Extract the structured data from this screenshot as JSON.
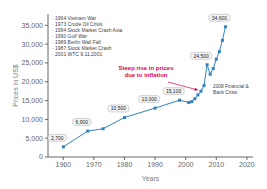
{
  "chart_data": {
    "type": "line",
    "x": [
      1960,
      1968,
      1973,
      1980,
      1990,
      1998,
      2001,
      2002,
      2003,
      2004,
      2005,
      2006,
      2007,
      2008,
      2009,
      2010,
      2011,
      2012,
      2013
    ],
    "values": [
      2700,
      6900,
      7500,
      10500,
      13000,
      15100,
      14500,
      14700,
      15500,
      16500,
      17500,
      19000,
      24500,
      22000,
      23500,
      26000,
      28000,
      31000,
      34600
    ],
    "value_labels": [
      "2,700",
      "6,900",
      null,
      "10,500",
      "13,000",
      "15,100",
      null,
      null,
      null,
      null,
      null,
      null,
      "24,500",
      null,
      null,
      null,
      null,
      null,
      "34,600"
    ],
    "data_labels": true,
    "marker": "square",
    "xlabel": "Years",
    "ylabel": "Prices in US$",
    "xlim": [
      1955,
      2022
    ],
    "ylim": [
      0,
      38000
    ],
    "xticks": [
      1960,
      1970,
      1980,
      1990,
      2000,
      2010,
      2020
    ],
    "yticks": [
      0,
      {
        "value": 5000,
        "label": "5,000"
      },
      {
        "value": 10000,
        "label": "10,000"
      },
      {
        "value": 15000,
        "label": "15,000"
      },
      {
        "value": 20000,
        "label": "20,000"
      },
      {
        "value": 25000,
        "label": "25,000"
      },
      {
        "value": 30000,
        "label": "30,000"
      },
      {
        "value": 35000,
        "label": "35,000"
      }
    ],
    "grid": false,
    "annotations": [
      {
        "text": "· 1964 Vietnam War"
      },
      {
        "text": "· 1973 Crude Oil Crisis"
      },
      {
        "text": "· 1994 Stock Market Crash Asia"
      },
      {
        "text": "· 1990 Gulf War"
      },
      {
        "text": "· 1989 Berlin Wall Fall"
      },
      {
        "text": "· 1987 Stock Market Crash"
      },
      {
        "text": "· 2001 WTC 9.11.2001"
      },
      {
        "text": "Steep rise in prices\ndue to inflation",
        "color": "#dd0055",
        "x": 2004,
        "y": 17800
      },
      {
        "text": "2008 Financial &\nBank Crisis"
      }
    ]
  }
}
